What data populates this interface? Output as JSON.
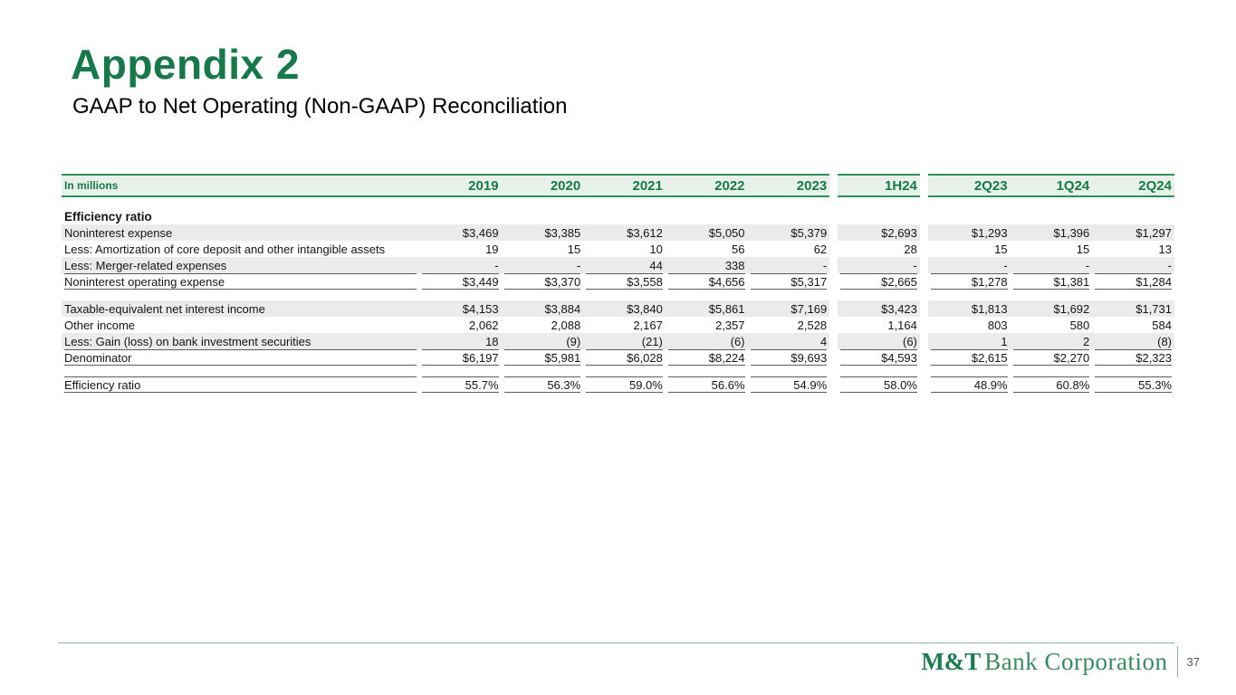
{
  "slide": {
    "title": "Appendix 2",
    "subtitle": "GAAP to Net Operating (Non-GAAP) Reconciliation",
    "page_number": "37"
  },
  "footer": {
    "logo_bold": "M&T",
    "logo_rest": "Bank Corporation"
  },
  "colors": {
    "accent_green": "#17784a",
    "header_band_bg": "#e7f1e9",
    "row_stripe": "#ebebeb",
    "rule_green": "#2f8f5b"
  },
  "table": {
    "header": [
      "In millions",
      "2019",
      "2020",
      "2021",
      "2022",
      "2023",
      "1H24",
      "2Q23",
      "1Q24",
      "2Q24"
    ],
    "rows": [
      {
        "label": "",
        "style": "gap",
        "values": []
      },
      {
        "label": "Efficiency ratio",
        "style": "section",
        "values": [
          "",
          "",
          "",
          "",
          "",
          "",
          "",
          "",
          ""
        ]
      },
      {
        "label": "Noninterest expense",
        "style": "stripe",
        "values": [
          "$3,469",
          "$3,385",
          "$3,612",
          "$5,050",
          "$5,379",
          "$2,693",
          "$1,293",
          "$1,396",
          "$1,297"
        ]
      },
      {
        "label": "Less: Amortization of core deposit and other intangible assets",
        "style": "plain",
        "values": [
          "19",
          "15",
          "10",
          "56",
          "62",
          "28",
          "15",
          "15",
          "13"
        ]
      },
      {
        "label": "Less: Merger-related expenses",
        "style": "stripe",
        "values": [
          "-",
          "-",
          "44",
          "338",
          "-",
          "-",
          "-",
          "-",
          "-"
        ]
      },
      {
        "label": "Noninterest operating expense",
        "style": "total",
        "values": [
          "$3,449",
          "$3,370",
          "$3,558",
          "$4,656",
          "$5,317",
          "$2,665",
          "$1,278",
          "$1,381",
          "$1,284"
        ]
      },
      {
        "label": "",
        "style": "gap",
        "values": []
      },
      {
        "label": "Taxable-equivalent net interest income",
        "style": "stripe",
        "values": [
          "$4,153",
          "$3,884",
          "$3,840",
          "$5,861",
          "$7,169",
          "$3,423",
          "$1,813",
          "$1,692",
          "$1,731"
        ]
      },
      {
        "label": "Other income",
        "style": "plain",
        "values": [
          "2,062",
          "2,088",
          "2,167",
          "2,357",
          "2,528",
          "1,164",
          "803",
          "580",
          "584"
        ]
      },
      {
        "label": "Less: Gain (loss) on bank investment securities",
        "style": "stripe",
        "values": [
          "18",
          "(9)",
          "(21)",
          "(6)",
          "4",
          "(6)",
          "1",
          "2",
          "(8)"
        ]
      },
      {
        "label": "Denominator",
        "style": "total",
        "values": [
          "$6,197",
          "$5,981",
          "$6,028",
          "$8,224",
          "$9,693",
          "$4,593",
          "$2,615",
          "$2,270",
          "$2,323"
        ]
      },
      {
        "label": "",
        "style": "gap",
        "values": []
      },
      {
        "label": "Efficiency ratio",
        "style": "result",
        "values": [
          "55.7%",
          "56.3%",
          "59.0%",
          "56.6%",
          "54.9%",
          "58.0%",
          "48.9%",
          "60.8%",
          "55.3%"
        ]
      }
    ]
  }
}
